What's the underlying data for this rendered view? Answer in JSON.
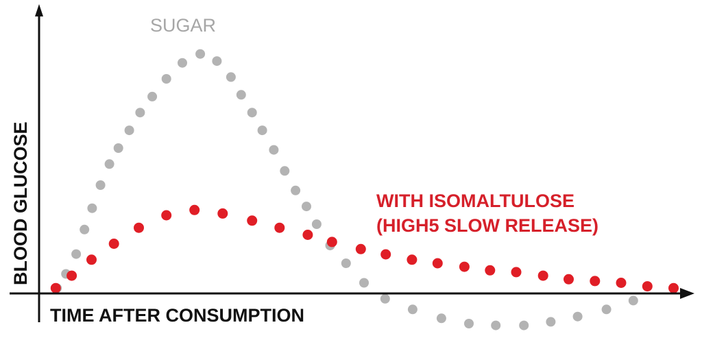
{
  "chart_data": {
    "type": "scatter",
    "title": "",
    "xlabel": "TIME AFTER CONSUMPTION",
    "ylabel": "BLOOD GLUCOSE",
    "xlim": [
      0,
      100
    ],
    "ylim": [
      -10,
      100
    ],
    "grid": false,
    "legend": "none",
    "series": [
      {
        "name": "SUGAR",
        "color": "#b3b3b3",
        "points": [
          [
            2.8,
            2.1
          ],
          [
            4.2,
            7.7
          ],
          [
            5.8,
            15.5
          ],
          [
            7.1,
            25.2
          ],
          [
            8.3,
            33.6
          ],
          [
            9.6,
            42.7
          ],
          [
            11.0,
            51.0
          ],
          [
            12.4,
            57.3
          ],
          [
            14.1,
            64.3
          ],
          [
            15.8,
            71.3
          ],
          [
            17.7,
            77.6
          ],
          [
            19.9,
            84.6
          ],
          [
            22.4,
            90.9
          ],
          [
            25.2,
            94.4
          ],
          [
            27.8,
            91.6
          ],
          [
            30.0,
            85.3
          ],
          [
            31.6,
            78.3
          ],
          [
            33.3,
            71.3
          ],
          [
            34.9,
            64.3
          ],
          [
            36.7,
            56.6
          ],
          [
            38.4,
            48.3
          ],
          [
            40.1,
            40.6
          ],
          [
            41.8,
            34.3
          ],
          [
            43.4,
            27.3
          ],
          [
            45.5,
            18.9
          ],
          [
            48.0,
            11.9
          ],
          [
            50.8,
            4.2
          ],
          [
            54.1,
            -2.1
          ],
          [
            58.4,
            -6.3
          ],
          [
            62.9,
            -9.8
          ],
          [
            67.2,
            -11.9
          ],
          [
            71.4,
            -12.6
          ],
          [
            75.8,
            -12.6
          ],
          [
            80.0,
            -11.2
          ],
          [
            84.2,
            -9.1
          ],
          [
            88.7,
            -6.3
          ],
          [
            92.9,
            -2.8
          ]
        ]
      },
      {
        "name": "WITH ISOMALTULOSE (HIGH5 SLOW RELEASE)",
        "color": "#e01e26",
        "points": [
          [
            2.6,
            2.1
          ],
          [
            5.1,
            7.0
          ],
          [
            8.2,
            13.3
          ],
          [
            11.7,
            19.6
          ],
          [
            15.6,
            25.9
          ],
          [
            19.9,
            30.8
          ],
          [
            24.3,
            32.9
          ],
          [
            28.7,
            31.5
          ],
          [
            33.3,
            28.7
          ],
          [
            37.6,
            25.9
          ],
          [
            42.0,
            23.1
          ],
          [
            45.8,
            20.3
          ],
          [
            50.3,
            17.5
          ],
          [
            54.2,
            15.4
          ],
          [
            58.3,
            13.3
          ],
          [
            62.3,
            11.9
          ],
          [
            66.5,
            10.5
          ],
          [
            70.5,
            9.1
          ],
          [
            74.6,
            8.4
          ],
          [
            78.8,
            7.0
          ],
          [
            82.8,
            5.6
          ],
          [
            86.9,
            4.9
          ],
          [
            91.0,
            4.2
          ],
          [
            95.1,
            2.8
          ],
          [
            99.2,
            2.1
          ]
        ]
      }
    ]
  }
}
